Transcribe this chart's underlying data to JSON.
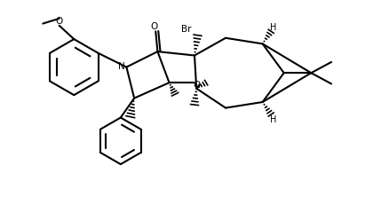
{
  "background_color": "#ffffff",
  "line_color": "#000000",
  "line_width": 1.5,
  "figure_width": 4.38,
  "figure_height": 2.32,
  "dpi": 100,
  "xlim": [
    0,
    10
  ],
  "ylim": [
    0,
    5.3
  ]
}
